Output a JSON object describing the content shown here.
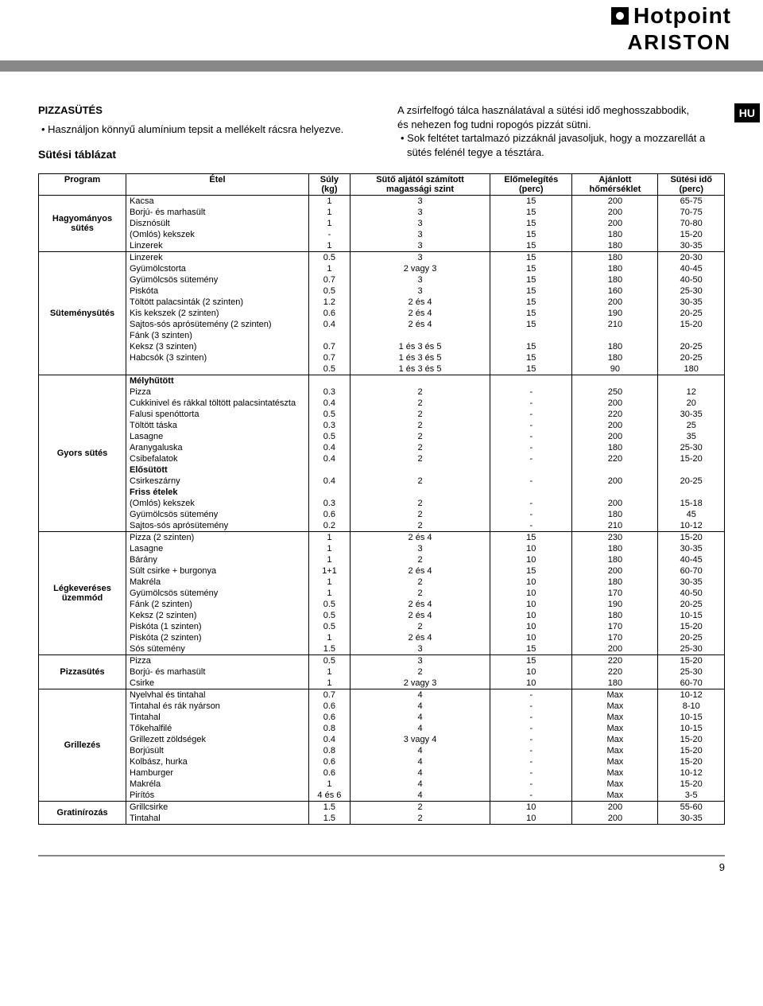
{
  "brand": {
    "line1": "Hotpoint",
    "line2": "ARISTON"
  },
  "hu_badge": "HU",
  "page_number": "9",
  "intro": {
    "left": {
      "title": "PIZZASÜTÉS",
      "bullet1": "Használjon könnyű alumínium tepsit a mellékelt rácsra helyezve.",
      "subtitle": "Sütési táblázat"
    },
    "right": {
      "line1": "A zsírfelfogó tálca használatával a sütési idő meghosszabbodik,",
      "line2": "és nehezen fog tudni ropogós pizzát sütni.",
      "bullet1": "Sok feltétet tartalmazó pizzáknál javasoljuk, hogy a mozzarellát a sütés felénél tegye a tésztára."
    }
  },
  "headers": {
    "program": "Program",
    "food": "Étel",
    "weight": "Súly (kg)",
    "level": "Sütő aljától számított magassági szint",
    "preheat": "Előmelegítés (perc)",
    "temp": "Ajánlott hőmérséklet",
    "time": "Sütési idő (perc)"
  },
  "sections": [
    {
      "program": "Hagyományos sütés",
      "rows": [
        [
          "Kacsa",
          "1",
          "3",
          "15",
          "200",
          "65-75"
        ],
        [
          "Borjú- és marhasült",
          "1",
          "3",
          "15",
          "200",
          "70-75"
        ],
        [
          "Disznósült",
          "1",
          "3",
          "15",
          "200",
          "70-80"
        ],
        [
          "(Omlós) kekszek",
          "-",
          "3",
          "15",
          "180",
          "15-20"
        ],
        [
          "Linzerek",
          "1",
          "3",
          "15",
          "180",
          "30-35"
        ]
      ]
    },
    {
      "program": "Süteménysütés",
      "rows": [
        [
          "Linzerek",
          "0.5",
          "3",
          "15",
          "180",
          "20-30"
        ],
        [
          "Gyümölcstorta",
          "1",
          "2 vagy 3",
          "15",
          "180",
          "40-45"
        ],
        [
          "Gyümölcsös sütemény",
          "0.7",
          "3",
          "15",
          "180",
          "40-50"
        ],
        [
          "Piskóta",
          "0.5",
          "3",
          "15",
          "160",
          "25-30"
        ],
        [
          "Töltött palacsinták (2 szinten)",
          "1.2",
          "2 és 4",
          "15",
          "200",
          "30-35"
        ],
        [
          "Kis kekszek (2 szinten)",
          "0.6",
          "2 és 4",
          "15",
          "190",
          "20-25"
        ],
        [
          "Sajtos-sós aprósütemény (2 szinten)",
          "0.4",
          "2 és 4",
          "15",
          "210",
          "15-20"
        ],
        [
          "Fánk (3 szinten)",
          "",
          "",
          "",
          "",
          ""
        ],
        [
          "Keksz (3 szinten)",
          "0.7",
          "1 és 3 és 5",
          "15",
          "180",
          "20-25"
        ],
        [
          "Habcsók (3 szinten)",
          "0.7",
          "1 és 3 és 5",
          "15",
          "180",
          "20-25"
        ],
        [
          "",
          "0.5",
          "1 és 3 és 5",
          "15",
          "90",
          "180"
        ]
      ]
    },
    {
      "program": "Gyors sütés",
      "rows": [
        [
          "Mélyhűtött",
          "",
          "",
          "",
          "",
          "",
          true
        ],
        [
          "Pizza",
          "0.3",
          "2",
          "-",
          "250",
          "12"
        ],
        [
          "Cukkinivel és rákkal töltött palacsintatészta",
          "0.4",
          "2",
          "-",
          "200",
          "20"
        ],
        [
          "Falusi spenóttorta",
          "0.5",
          "2",
          "-",
          "220",
          "30-35"
        ],
        [
          "Töltött táska",
          "0.3",
          "2",
          "-",
          "200",
          "25"
        ],
        [
          "Lasagne",
          "0.5",
          "2",
          "-",
          "200",
          "35"
        ],
        [
          "Aranygaluska",
          "0.4",
          "2",
          "-",
          "180",
          "25-30"
        ],
        [
          "Csibefalatok",
          "0.4",
          "2",
          "-",
          "220",
          "15-20"
        ],
        [
          "Elősütött",
          "",
          "",
          "",
          "",
          "",
          true
        ],
        [
          "Csirkeszárny",
          "0.4",
          "2",
          "-",
          "200",
          "20-25"
        ],
        [
          "Friss ételek",
          "",
          "",
          "",
          "",
          "",
          true
        ],
        [
          "(Omlós) kekszek",
          "0.3",
          "2",
          "-",
          "200",
          "15-18"
        ],
        [
          "Gyümölcsös sütemény",
          "0.6",
          "2",
          "-",
          "180",
          "45"
        ],
        [
          "Sajtos-sós aprósütemény",
          "0.2",
          "2",
          "-",
          "210",
          "10-12"
        ]
      ]
    },
    {
      "program": "Légkeveréses üzemmód",
      "rows": [
        [
          "Pizza (2 szinten)",
          "1",
          "2 és 4",
          "15",
          "230",
          "15-20"
        ],
        [
          "Lasagne",
          "1",
          "3",
          "10",
          "180",
          "30-35"
        ],
        [
          "Bárány",
          "1",
          "2",
          "10",
          "180",
          "40-45"
        ],
        [
          "Sült csirke + burgonya",
          "1+1",
          "2 és 4",
          "15",
          "200",
          "60-70"
        ],
        [
          "Makréla",
          "1",
          "2",
          "10",
          "180",
          "30-35"
        ],
        [
          "Gyümölcsös sütemény",
          "1",
          "2",
          "10",
          "170",
          "40-50"
        ],
        [
          "Fánk (2 szinten)",
          "0.5",
          "2 és 4",
          "10",
          "190",
          "20-25"
        ],
        [
          "Keksz (2 szinten)",
          "0.5",
          "2 és 4",
          "10",
          "180",
          "10-15"
        ],
        [
          "Piskóta (1 szinten)",
          "0.5",
          "2",
          "10",
          "170",
          "15-20"
        ],
        [
          "Piskóta (2 szinten)",
          "1",
          "2 és 4",
          "10",
          "170",
          "20-25"
        ],
        [
          "Sós sütemény",
          "1.5",
          "3",
          "15",
          "200",
          "25-30"
        ]
      ]
    },
    {
      "program": "Pizzasütés",
      "rows": [
        [
          "Pizza",
          "0.5",
          "3",
          "15",
          "220",
          "15-20"
        ],
        [
          "Borjú- és marhasült",
          "1",
          "2",
          "10",
          "220",
          "25-30"
        ],
        [
          "Csirke",
          "1",
          "2 vagy 3",
          "10",
          "180",
          "60-70"
        ]
      ]
    },
    {
      "program": "Grillezés",
      "rows": [
        [
          "Nyelvhal és tintahal",
          "0.7",
          "4",
          "-",
          "Max",
          "10-12"
        ],
        [
          "Tintahal és rák nyárson",
          "0.6",
          "4",
          "-",
          "Max",
          "8-10"
        ],
        [
          "Tintahal",
          "0.6",
          "4",
          "-",
          "Max",
          "10-15"
        ],
        [
          "Tőkehalfilé",
          "0.8",
          "4",
          "-",
          "Max",
          "10-15"
        ],
        [
          "Grillezett zöldségek",
          "0.4",
          "3 vagy 4",
          "-",
          "Max",
          "15-20"
        ],
        [
          "Borjúsült",
          "0.8",
          "4",
          "-",
          "Max",
          "15-20"
        ],
        [
          "Kolbász, hurka",
          "0.6",
          "4",
          "-",
          "Max",
          "15-20"
        ],
        [
          "Hamburger",
          "0.6",
          "4",
          "-",
          "Max",
          "10-12"
        ],
        [
          "Makréla",
          "1",
          "4",
          "-",
          "Max",
          "15-20"
        ],
        [
          "Pirítós",
          "4 és 6",
          "4",
          "-",
          "Max",
          "3-5"
        ]
      ]
    },
    {
      "program": "Gratinírozás",
      "rows": [
        [
          "Grillcsirke",
          "1.5",
          "2",
          "10",
          "200",
          "55-60"
        ],
        [
          "Tintahal",
          "1.5",
          "2",
          "10",
          "200",
          "30-35"
        ]
      ]
    }
  ]
}
